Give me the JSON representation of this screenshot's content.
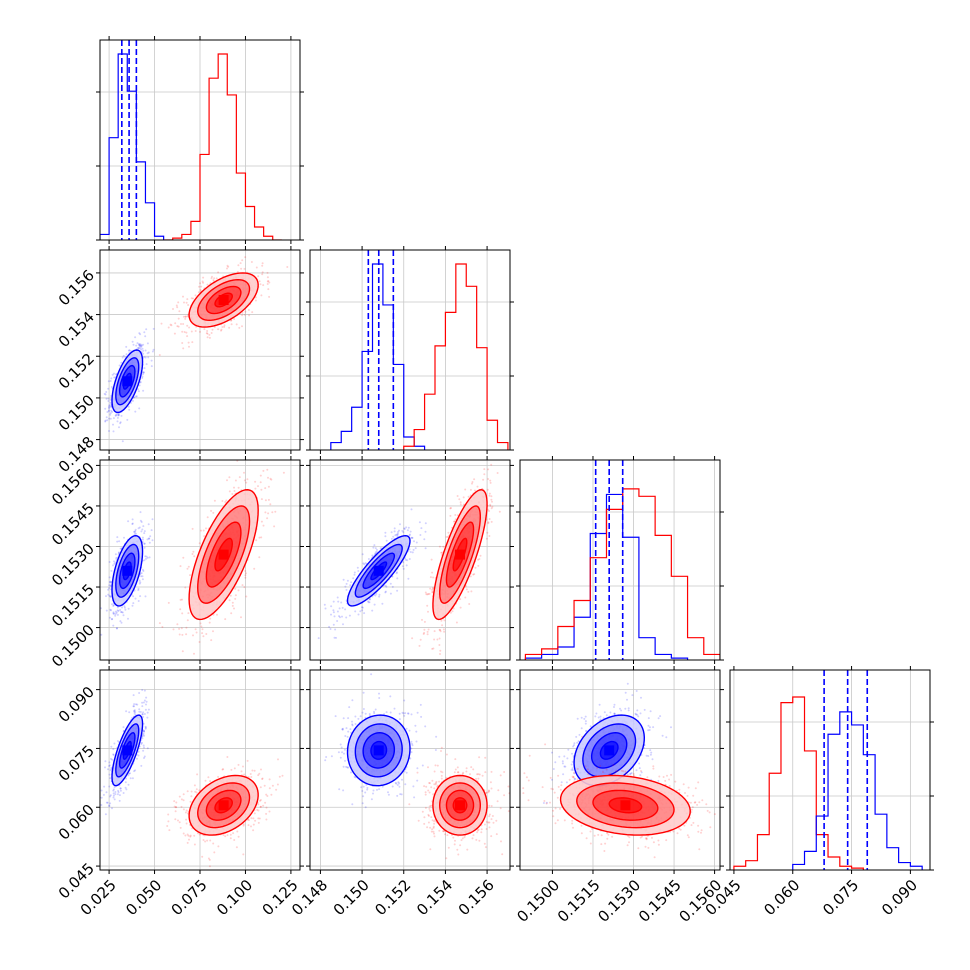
{
  "figure": {
    "type": "corner-plot",
    "n_params": 4
  },
  "chart_data": {
    "type": "corner",
    "colors": {
      "blue": "#0000ff",
      "red": "#ff0000"
    },
    "series_colors": [
      "blue",
      "red"
    ],
    "dims": [
      {
        "range": [
          0.02,
          0.13
        ],
        "ticks": [
          0.025,
          0.05,
          0.075,
          0.1,
          0.125
        ],
        "ticklabels": [
          "0.025",
          "0.050",
          "0.075",
          "0.100",
          "0.125"
        ],
        "quantiles": [
          0.032,
          0.036,
          0.04
        ]
      },
      {
        "range": [
          0.1475,
          0.1571
        ],
        "ticks": [
          0.148,
          0.15,
          0.152,
          0.154,
          0.156
        ],
        "ticklabels": [
          "0.148",
          "0.150",
          "0.152",
          "0.154",
          "0.156"
        ],
        "quantiles": [
          0.1503,
          0.1508,
          0.1515
        ]
      },
      {
        "range": [
          0.1488,
          0.1562
        ],
        "ticks": [
          0.15,
          0.1515,
          0.153,
          0.1545,
          0.156
        ],
        "ticklabels": [
          "0.1500",
          "0.1515",
          "0.1530",
          "0.1545",
          "0.1560"
        ],
        "quantiles": [
          0.1516,
          0.1521,
          0.1526
        ]
      },
      {
        "range": [
          0.044,
          0.095
        ],
        "ticks": [
          0.045,
          0.06,
          0.075,
          0.09
        ],
        "ticklabels": [
          "0.045",
          "0.060",
          "0.075",
          "0.090"
        ],
        "quantiles": [
          0.068,
          0.074,
          0.079
        ]
      }
    ],
    "diag_tick_fracs": [
      0.0,
      0.37,
      0.74
    ],
    "histograms": [
      {
        "series": [
          {
            "color": "blue",
            "bins": [
              {
                "x0": 0.02,
                "x1": 0.025,
                "h": 0.03
              },
              {
                "x0": 0.025,
                "x1": 0.03,
                "h": 0.55
              },
              {
                "x0": 0.03,
                "x1": 0.035,
                "h": 1.0
              },
              {
                "x0": 0.035,
                "x1": 0.04,
                "h": 0.8
              },
              {
                "x0": 0.04,
                "x1": 0.045,
                "h": 0.42
              },
              {
                "x0": 0.045,
                "x1": 0.05,
                "h": 0.2
              },
              {
                "x0": 0.05,
                "x1": 0.055,
                "h": 0.02
              }
            ]
          },
          {
            "color": "red",
            "bins": [
              {
                "x0": 0.055,
                "x1": 0.06,
                "h": 0.0
              },
              {
                "x0": 0.06,
                "x1": 0.065,
                "h": 0.01
              },
              {
                "x0": 0.065,
                "x1": 0.07,
                "h": 0.03
              },
              {
                "x0": 0.07,
                "x1": 0.075,
                "h": 0.1
              },
              {
                "x0": 0.075,
                "x1": 0.08,
                "h": 0.46
              },
              {
                "x0": 0.08,
                "x1": 0.085,
                "h": 0.87
              },
              {
                "x0": 0.085,
                "x1": 0.09,
                "h": 1.0
              },
              {
                "x0": 0.09,
                "x1": 0.095,
                "h": 0.78
              },
              {
                "x0": 0.095,
                "x1": 0.1,
                "h": 0.36
              },
              {
                "x0": 0.1,
                "x1": 0.105,
                "h": 0.18
              },
              {
                "x0": 0.105,
                "x1": 0.11,
                "h": 0.07
              },
              {
                "x0": 0.11,
                "x1": 0.115,
                "h": 0.02
              },
              {
                "x0": 0.115,
                "x1": 0.12,
                "h": 0.0
              }
            ]
          }
        ]
      },
      {
        "series": [
          {
            "color": "blue",
            "bins": [
              {
                "x0": 0.1485,
                "x1": 0.149,
                "h": 0.04
              },
              {
                "x0": 0.149,
                "x1": 0.1495,
                "h": 0.1
              },
              {
                "x0": 0.1495,
                "x1": 0.15,
                "h": 0.23
              },
              {
                "x0": 0.15,
                "x1": 0.1505,
                "h": 0.53
              },
              {
                "x0": 0.1505,
                "x1": 0.151,
                "h": 1.0
              },
              {
                "x0": 0.151,
                "x1": 0.1515,
                "h": 0.78
              },
              {
                "x0": 0.1515,
                "x1": 0.152,
                "h": 0.46
              },
              {
                "x0": 0.152,
                "x1": 0.1525,
                "h": 0.07
              },
              {
                "x0": 0.1525,
                "x1": 0.153,
                "h": 0.02
              }
            ]
          },
          {
            "color": "red",
            "bins": [
              {
                "x0": 0.152,
                "x1": 0.1525,
                "h": 0.02
              },
              {
                "x0": 0.1525,
                "x1": 0.153,
                "h": 0.11
              },
              {
                "x0": 0.153,
                "x1": 0.1535,
                "h": 0.3
              },
              {
                "x0": 0.1535,
                "x1": 0.154,
                "h": 0.56
              },
              {
                "x0": 0.154,
                "x1": 0.1545,
                "h": 0.74
              },
              {
                "x0": 0.1545,
                "x1": 0.155,
                "h": 1.0
              },
              {
                "x0": 0.155,
                "x1": 0.1555,
                "h": 0.88
              },
              {
                "x0": 0.1555,
                "x1": 0.156,
                "h": 0.55
              },
              {
                "x0": 0.156,
                "x1": 0.1565,
                "h": 0.16
              },
              {
                "x0": 0.1565,
                "x1": 0.157,
                "h": 0.04
              }
            ]
          }
        ]
      },
      {
        "series": [
          {
            "color": "blue",
            "bins": [
              {
                "x0": 0.149,
                "x1": 0.1496,
                "h": 0.01
              },
              {
                "x0": 0.1496,
                "x1": 0.1502,
                "h": 0.03
              },
              {
                "x0": 0.1502,
                "x1": 0.1508,
                "h": 0.07
              },
              {
                "x0": 0.1508,
                "x1": 0.1514,
                "h": 0.23
              },
              {
                "x0": 0.1514,
                "x1": 0.152,
                "h": 0.68
              },
              {
                "x0": 0.152,
                "x1": 0.1526,
                "h": 0.89
              },
              {
                "x0": 0.1526,
                "x1": 0.1532,
                "h": 0.66
              },
              {
                "x0": 0.1532,
                "x1": 0.1538,
                "h": 0.12
              },
              {
                "x0": 0.1538,
                "x1": 0.1544,
                "h": 0.03
              },
              {
                "x0": 0.1544,
                "x1": 0.155,
                "h": 0.01
              }
            ]
          },
          {
            "color": "red",
            "bins": [
              {
                "x0": 0.149,
                "x1": 0.1496,
                "h": 0.03
              },
              {
                "x0": 0.1496,
                "x1": 0.1502,
                "h": 0.06
              },
              {
                "x0": 0.1502,
                "x1": 0.1508,
                "h": 0.18
              },
              {
                "x0": 0.1508,
                "x1": 0.1514,
                "h": 0.32
              },
              {
                "x0": 0.1514,
                "x1": 0.152,
                "h": 0.55
              },
              {
                "x0": 0.152,
                "x1": 0.1526,
                "h": 0.81
              },
              {
                "x0": 0.1526,
                "x1": 0.1532,
                "h": 0.92
              },
              {
                "x0": 0.1532,
                "x1": 0.1538,
                "h": 0.88
              },
              {
                "x0": 0.1538,
                "x1": 0.1544,
                "h": 0.67
              },
              {
                "x0": 0.1544,
                "x1": 0.155,
                "h": 0.45
              },
              {
                "x0": 0.155,
                "x1": 0.1556,
                "h": 0.12
              },
              {
                "x0": 0.1556,
                "x1": 0.1562,
                "h": 0.03
              }
            ]
          }
        ]
      },
      {
        "series": [
          {
            "color": "red",
            "bins": [
              {
                "x0": 0.045,
                "x1": 0.048,
                "h": 0.02
              },
              {
                "x0": 0.048,
                "x1": 0.051,
                "h": 0.05
              },
              {
                "x0": 0.051,
                "x1": 0.054,
                "h": 0.19
              },
              {
                "x0": 0.054,
                "x1": 0.057,
                "h": 0.52
              },
              {
                "x0": 0.057,
                "x1": 0.06,
                "h": 0.9
              },
              {
                "x0": 0.06,
                "x1": 0.063,
                "h": 0.93
              },
              {
                "x0": 0.063,
                "x1": 0.066,
                "h": 0.64
              },
              {
                "x0": 0.066,
                "x1": 0.069,
                "h": 0.19
              },
              {
                "x0": 0.069,
                "x1": 0.072,
                "h": 0.07
              },
              {
                "x0": 0.072,
                "x1": 0.075,
                "h": 0.02
              },
              {
                "x0": 0.075,
                "x1": 0.078,
                "h": 0.01
              }
            ]
          },
          {
            "color": "blue",
            "bins": [
              {
                "x0": 0.06,
                "x1": 0.063,
                "h": 0.03
              },
              {
                "x0": 0.063,
                "x1": 0.066,
                "h": 0.1
              },
              {
                "x0": 0.066,
                "x1": 0.069,
                "h": 0.29
              },
              {
                "x0": 0.069,
                "x1": 0.072,
                "h": 0.73
              },
              {
                "x0": 0.072,
                "x1": 0.075,
                "h": 0.85
              },
              {
                "x0": 0.075,
                "x1": 0.078,
                "h": 0.78
              },
              {
                "x0": 0.078,
                "x1": 0.081,
                "h": 0.62
              },
              {
                "x0": 0.081,
                "x1": 0.084,
                "h": 0.3
              },
              {
                "x0": 0.084,
                "x1": 0.087,
                "h": 0.12
              },
              {
                "x0": 0.087,
                "x1": 0.09,
                "h": 0.04
              },
              {
                "x0": 0.09,
                "x1": 0.093,
                "h": 0.02
              }
            ]
          }
        ]
      }
    ],
    "joint": [
      {
        "row": 1,
        "col": 0,
        "dists": [
          {
            "color": "blue",
            "cx": 0.035,
            "cy": 0.1508,
            "sx": 0.0042,
            "sy": 0.00075,
            "rho": 0.62
          },
          {
            "color": "red",
            "cx": 0.088,
            "cy": 0.1547,
            "sx": 0.0095,
            "sy": 0.00065,
            "rho": 0.55
          }
        ]
      },
      {
        "row": 2,
        "col": 0,
        "dists": [
          {
            "color": "blue",
            "cx": 0.035,
            "cy": 0.1521,
            "sx": 0.0042,
            "sy": 0.00065,
            "rho": 0.55
          },
          {
            "color": "red",
            "cx": 0.088,
            "cy": 0.1527,
            "sx": 0.0095,
            "sy": 0.0012,
            "rho": 0.68
          }
        ]
      },
      {
        "row": 2,
        "col": 1,
        "dists": [
          {
            "color": "blue",
            "cx": 0.1508,
            "cy": 0.1521,
            "sx": 0.00075,
            "sy": 0.00065,
            "rho": 0.85
          },
          {
            "color": "red",
            "cx": 0.1547,
            "cy": 0.1527,
            "sx": 0.00065,
            "sy": 0.0012,
            "rho": 0.78
          }
        ]
      },
      {
        "row": 3,
        "col": 0,
        "dists": [
          {
            "color": "blue",
            "cx": 0.035,
            "cy": 0.0745,
            "sx": 0.0042,
            "sy": 0.0045,
            "rho": 0.75
          },
          {
            "color": "red",
            "cx": 0.088,
            "cy": 0.0605,
            "sx": 0.0095,
            "sy": 0.0038,
            "rho": 0.35
          }
        ]
      },
      {
        "row": 3,
        "col": 1,
        "dists": [
          {
            "color": "blue",
            "cx": 0.1508,
            "cy": 0.0745,
            "sx": 0.00075,
            "sy": 0.0045,
            "rho": 0.05
          },
          {
            "color": "red",
            "cx": 0.1547,
            "cy": 0.0605,
            "sx": 0.00065,
            "sy": 0.0038,
            "rho": 0.0
          }
        ]
      },
      {
        "row": 3,
        "col": 2,
        "dists": [
          {
            "color": "blue",
            "cx": 0.1521,
            "cy": 0.0745,
            "sx": 0.00065,
            "sy": 0.0045,
            "rho": 0.35
          },
          {
            "color": "red",
            "cx": 0.1527,
            "cy": 0.0605,
            "sx": 0.0012,
            "sy": 0.0038,
            "rho": -0.2
          }
        ]
      }
    ],
    "contour_levels_sigma": [
      0.5,
      1.0,
      1.5,
      2.0
    ]
  }
}
